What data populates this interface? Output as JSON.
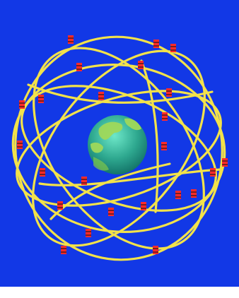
{
  "diagram": {
    "colors": {
      "background": "#1238e6",
      "orbit": "#f2e24a",
      "earth_ocean": "#2ea88f",
      "earth_land": "#9fd85a",
      "satellite": "#ff2a2a",
      "satellite_panel": "#7a1e1e"
    },
    "orbits_count": 6,
    "satellites_count": 24,
    "icons": {
      "earth": "earth-globe-icon",
      "satellite": "satellite-icon"
    }
  }
}
